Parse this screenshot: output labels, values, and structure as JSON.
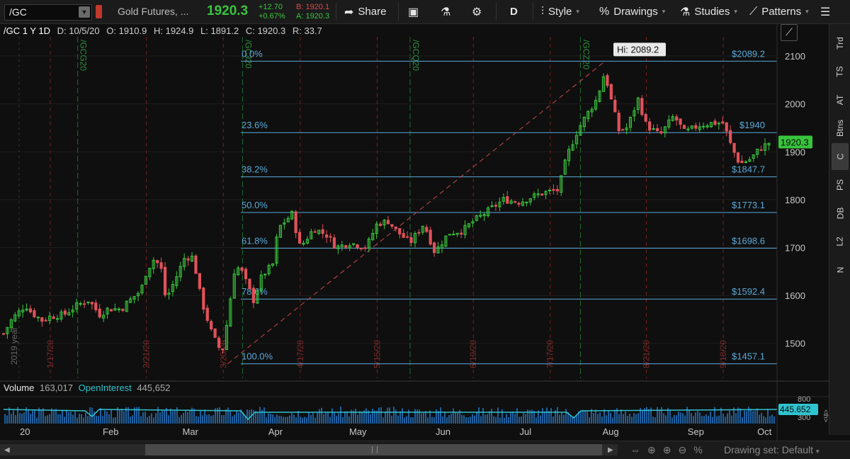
{
  "toolbar": {
    "symbol": "/GC",
    "description": "Gold Futures, ...",
    "last": "1920.3",
    "net_change": "+12.70",
    "pct_change": "+0.67%",
    "bid": "B: 1920.1",
    "ask": "A: 1920.3",
    "share_label": "Share",
    "aggregation": "D",
    "style_label": "Style",
    "drawings_label": "Drawings",
    "studies_label": "Studies",
    "patterns_label": "Patterns"
  },
  "infobar": {
    "title": "/GC 1 Y 1D",
    "date": "D: 10/5/20",
    "open": "O: 1910.9",
    "high": "H: 1924.9",
    "low": "L: 1891.2",
    "close": "C: 1920.3",
    "range": "R: 33.7"
  },
  "sidebar": {
    "items": [
      "Trd",
      "TS",
      "AT",
      "Btns",
      "C",
      "PS",
      "DB",
      "L2",
      "N"
    ],
    "active": "C"
  },
  "volume_bar": {
    "volume_label": "Volume",
    "volume_value": "163,017",
    "oi_label": "OpenInterest",
    "oi_value": "445,652",
    "oi_tag": "445.652",
    "scale_labels": [
      "800",
      "<th>",
      "300"
    ]
  },
  "bottom": {
    "drawing_set": "Drawing set: Default"
  },
  "colors": {
    "up": "#39c43d",
    "down": "#e0525a",
    "fib": "#5aa9d8",
    "oi": "#2fc4cf",
    "volume": "#1f5f9e"
  },
  "chart_data": {
    "type": "candlestick",
    "symbol": "/GC",
    "period": "1 Y 1D",
    "ylim": [
      1430,
      2140
    ],
    "y_ticks": [
      1500,
      1600,
      1700,
      1800,
      1900,
      2000,
      2100
    ],
    "x_month_labels": [
      "20",
      "Feb",
      "Mar",
      "Apr",
      "May",
      "Jun",
      "Jul",
      "Aug",
      "Sep",
      "Oct"
    ],
    "last_price_tag": "1920.3",
    "high_annotation": "Hi: 2089.2",
    "fib_levels": [
      {
        "pct": "0.0%",
        "price": 2089.2,
        "label": "$2089.2"
      },
      {
        "pct": "23.6%",
        "price": 1940,
        "label": "$1940"
      },
      {
        "pct": "38.2%",
        "price": 1847.7,
        "label": "$1847.7"
      },
      {
        "pct": "50.0%",
        "price": 1773.1,
        "label": "$1773.1"
      },
      {
        "pct": "61.8%",
        "price": 1698.6,
        "label": "$1698.6"
      },
      {
        "pct": "78.6%",
        "price": 1592.4,
        "label": "$1592.4"
      },
      {
        "pct": "100.0%",
        "price": 1457.1,
        "label": "$1457.1"
      }
    ],
    "red_markers": [
      "1/17/20",
      "2/21/20",
      "3/20/20",
      "4/17/20",
      "5/15/20",
      "6/19/20",
      "7/17/20",
      "8/21/20",
      "9/18/20"
    ],
    "green_markers": [
      "/GCG20",
      "/GCJ20",
      "/GCQ20",
      "/GCZ20"
    ],
    "year_marker": "2019 year",
    "price_path": [
      [
        "12/31",
        1520
      ],
      [
        "1/3",
        1550
      ],
      [
        "1/8",
        1580
      ],
      [
        "1/10",
        1565
      ],
      [
        "1/14",
        1548
      ],
      [
        "1/17",
        1556
      ],
      [
        "1/22",
        1560
      ],
      [
        "1/27",
        1580
      ],
      [
        "1/31",
        1590
      ],
      [
        "2/4",
        1560
      ],
      [
        "2/7",
        1572
      ],
      [
        "2/12",
        1572
      ],
      [
        "2/14",
        1585
      ],
      [
        "2/19",
        1610
      ],
      [
        "2/21",
        1650
      ],
      [
        "2/24",
        1678
      ],
      [
        "2/27",
        1648
      ],
      [
        "2/28",
        1590
      ],
      [
        "3/3",
        1640
      ],
      [
        "3/6",
        1680
      ],
      [
        "3/9",
        1680
      ],
      [
        "3/12",
        1590
      ],
      [
        "3/16",
        1518
      ],
      [
        "3/19",
        1485
      ],
      [
        "3/20",
        1490
      ],
      [
        "3/24",
        1650
      ],
      [
        "3/26",
        1660
      ],
      [
        "3/31",
        1590
      ],
      [
        "4/3",
        1640
      ],
      [
        "4/7",
        1665
      ],
      [
        "4/9",
        1740
      ],
      [
        "4/14",
        1770
      ],
      [
        "4/17",
        1700
      ],
      [
        "4/22",
        1740
      ],
      [
        "4/27",
        1725
      ],
      [
        "4/30",
        1700
      ],
      [
        "5/5",
        1710
      ],
      [
        "5/11",
        1700
      ],
      [
        "5/15",
        1750
      ],
      [
        "5/19",
        1755
      ],
      [
        "5/22",
        1735
      ],
      [
        "5/27",
        1710
      ],
      [
        "6/1",
        1750
      ],
      [
        "6/5",
        1690
      ],
      [
        "6/10",
        1730
      ],
      [
        "6/15",
        1735
      ],
      [
        "6/19",
        1755
      ],
      [
        "6/24",
        1775
      ],
      [
        "6/30",
        1800
      ],
      [
        "7/6",
        1795
      ],
      [
        "7/10",
        1805
      ],
      [
        "7/15",
        1815
      ],
      [
        "7/20",
        1820
      ],
      [
        "7/23",
        1890
      ],
      [
        "7/27",
        1945
      ],
      [
        "7/30",
        1975
      ],
      [
        "8/3",
        2010
      ],
      [
        "8/6",
        2070
      ],
      [
        "8/7",
        2035
      ],
      [
        "8/11",
        1945
      ],
      [
        "8/14",
        1950
      ],
      [
        "8/18",
        2010
      ],
      [
        "8/21",
        1955
      ],
      [
        "8/26",
        1935
      ],
      [
        "8/31",
        1975
      ],
      [
        "9/4",
        1940
      ],
      [
        "9/9",
        1955
      ],
      [
        "9/14",
        1960
      ],
      [
        "9/18",
        1960
      ],
      [
        "9/21",
        1910
      ],
      [
        "9/24",
        1875
      ],
      [
        "9/28",
        1885
      ],
      [
        "10/1",
        1905
      ],
      [
        "10/5",
        1920.3
      ]
    ]
  }
}
